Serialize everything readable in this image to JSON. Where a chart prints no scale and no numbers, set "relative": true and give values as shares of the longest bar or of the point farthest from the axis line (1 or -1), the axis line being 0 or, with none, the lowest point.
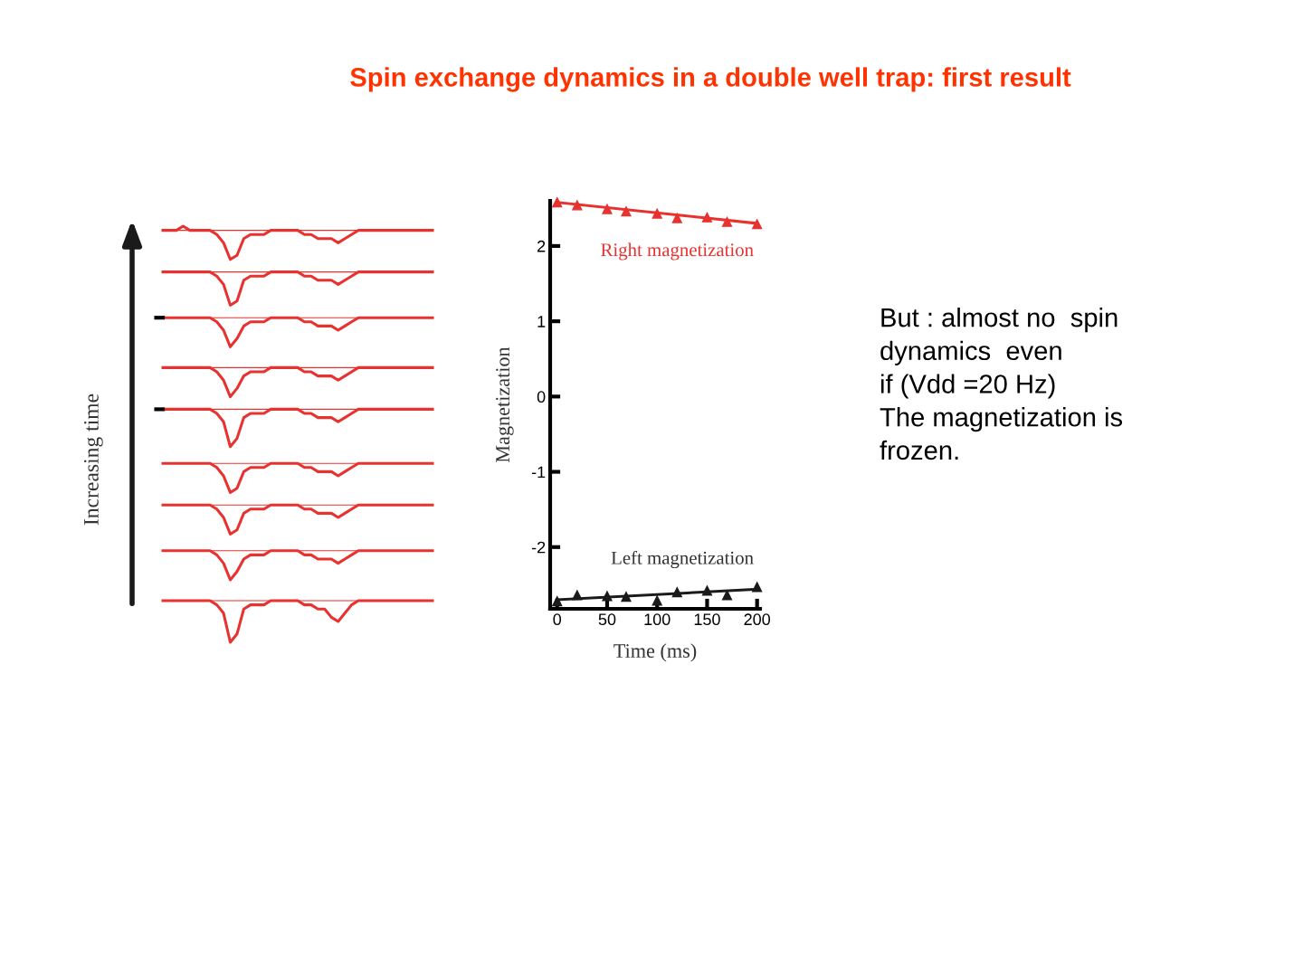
{
  "chart_data": [
    {
      "type": "line",
      "relative": true,
      "title": "Spin exchange dynamics in a double well trap: first result",
      "ylabel": "Increasing time",
      "categories": [
        null,
        null,
        null,
        null,
        null,
        null,
        null,
        null,
        null,
        null,
        null,
        null,
        null,
        null,
        null,
        null,
        null,
        null,
        null,
        null,
        null,
        null,
        null,
        null,
        null,
        null,
        null,
        null,
        null,
        null,
        null,
        null,
        null,
        null,
        null,
        null,
        null,
        null,
        null,
        null,
        null
      ],
      "marker": "none",
      "ref_lines": [
        {
          "axis": "y",
          "value": 0.99,
          "color": "#e8322f"
        },
        {
          "axis": "y",
          "value": 0.89,
          "color": "#e8322f"
        },
        {
          "axis": "y",
          "value": 0.78,
          "color": "#e8322f"
        },
        {
          "axis": "y",
          "value": 0.66,
          "color": "#e8322f"
        },
        {
          "axis": "y",
          "value": 0.56,
          "color": "#e8322f"
        },
        {
          "axis": "y",
          "value": 0.43,
          "color": "#e8322f"
        },
        {
          "axis": "y",
          "value": 0.33,
          "color": "#e8322f"
        },
        {
          "axis": "y",
          "value": 0.22,
          "color": "#e8322f"
        },
        {
          "axis": "y",
          "value": 0.1,
          "color": "#e8322f"
        }
      ],
      "series": [
        {
          "color": "#e8322f",
          "values": [
            0.99,
            0.99,
            0.99,
            1.0,
            0.99,
            0.99,
            0.99,
            0.99,
            0.98,
            0.96,
            0.92,
            0.93,
            0.97,
            0.98,
            0.98,
            0.98,
            0.99,
            0.99,
            0.99,
            0.99,
            0.99,
            0.98,
            0.98,
            0.97,
            0.97,
            0.97,
            0.96,
            0.97,
            0.98,
            0.99,
            0.99,
            0.99,
            0.99,
            0.99,
            0.99,
            0.99,
            0.99,
            0.99,
            0.99,
            0.99,
            0.99
          ]
        },
        {
          "color": "#e8322f",
          "values": [
            0.89,
            0.89,
            0.89,
            0.89,
            0.89,
            0.89,
            0.89,
            0.89,
            0.88,
            0.86,
            0.81,
            0.82,
            0.87,
            0.88,
            0.88,
            0.88,
            0.89,
            0.89,
            0.89,
            0.89,
            0.89,
            0.88,
            0.88,
            0.87,
            0.87,
            0.87,
            0.86,
            0.87,
            0.88,
            0.89,
            0.89,
            0.89,
            0.89,
            0.89,
            0.89,
            0.89,
            0.89,
            0.89,
            0.89,
            0.89,
            0.89
          ]
        },
        {
          "color": "#e8322f",
          "values": [
            0.78,
            0.78,
            0.78,
            0.78,
            0.78,
            0.78,
            0.78,
            0.78,
            0.77,
            0.75,
            0.71,
            0.73,
            0.76,
            0.77,
            0.77,
            0.77,
            0.78,
            0.78,
            0.78,
            0.78,
            0.78,
            0.77,
            0.77,
            0.76,
            0.76,
            0.76,
            0.75,
            0.76,
            0.77,
            0.78,
            0.78,
            0.78,
            0.78,
            0.78,
            0.78,
            0.78,
            0.78,
            0.78,
            0.78,
            0.78,
            0.78
          ]
        },
        {
          "color": "#e8322f",
          "values": [
            0.66,
            0.66,
            0.66,
            0.66,
            0.66,
            0.66,
            0.66,
            0.66,
            0.65,
            0.63,
            0.59,
            0.61,
            0.64,
            0.65,
            0.65,
            0.65,
            0.66,
            0.66,
            0.66,
            0.66,
            0.66,
            0.65,
            0.65,
            0.64,
            0.64,
            0.64,
            0.63,
            0.64,
            0.65,
            0.66,
            0.66,
            0.66,
            0.66,
            0.66,
            0.66,
            0.66,
            0.66,
            0.66,
            0.66,
            0.66,
            0.66
          ]
        },
        {
          "color": "#e8322f",
          "values": [
            0.56,
            0.56,
            0.56,
            0.56,
            0.56,
            0.56,
            0.56,
            0.56,
            0.55,
            0.53,
            0.47,
            0.49,
            0.54,
            0.55,
            0.55,
            0.55,
            0.56,
            0.56,
            0.56,
            0.56,
            0.56,
            0.55,
            0.55,
            0.54,
            0.54,
            0.54,
            0.53,
            0.54,
            0.55,
            0.56,
            0.56,
            0.56,
            0.56,
            0.56,
            0.56,
            0.56,
            0.56,
            0.56,
            0.56,
            0.56,
            0.56
          ]
        },
        {
          "color": "#e8322f",
          "values": [
            0.43,
            0.43,
            0.43,
            0.43,
            0.43,
            0.43,
            0.43,
            0.43,
            0.42,
            0.4,
            0.36,
            0.37,
            0.41,
            0.42,
            0.42,
            0.42,
            0.43,
            0.43,
            0.43,
            0.43,
            0.43,
            0.42,
            0.42,
            0.41,
            0.41,
            0.41,
            0.4,
            0.41,
            0.42,
            0.43,
            0.43,
            0.43,
            0.43,
            0.43,
            0.43,
            0.43,
            0.43,
            0.43,
            0.43,
            0.43,
            0.43
          ]
        },
        {
          "color": "#e8322f",
          "values": [
            0.33,
            0.33,
            0.33,
            0.33,
            0.33,
            0.33,
            0.33,
            0.33,
            0.32,
            0.3,
            0.26,
            0.27,
            0.31,
            0.32,
            0.32,
            0.32,
            0.33,
            0.33,
            0.33,
            0.33,
            0.33,
            0.32,
            0.32,
            0.31,
            0.31,
            0.31,
            0.3,
            0.31,
            0.32,
            0.33,
            0.33,
            0.33,
            0.33,
            0.33,
            0.33,
            0.33,
            0.33,
            0.33,
            0.33,
            0.33,
            0.33
          ]
        },
        {
          "color": "#e8322f",
          "values": [
            0.22,
            0.22,
            0.22,
            0.22,
            0.22,
            0.22,
            0.22,
            0.22,
            0.21,
            0.19,
            0.15,
            0.17,
            0.2,
            0.21,
            0.21,
            0.21,
            0.22,
            0.22,
            0.22,
            0.22,
            0.22,
            0.21,
            0.21,
            0.2,
            0.2,
            0.2,
            0.19,
            0.2,
            0.21,
            0.22,
            0.22,
            0.22,
            0.22,
            0.22,
            0.22,
            0.22,
            0.22,
            0.22,
            0.22,
            0.22,
            0.22
          ]
        },
        {
          "color": "#e8322f",
          "values": [
            0.1,
            0.1,
            0.1,
            0.1,
            0.1,
            0.1,
            0.1,
            0.1,
            0.09,
            0.07,
            0.0,
            0.02,
            0.08,
            0.09,
            0.09,
            0.09,
            0.1,
            0.1,
            0.1,
            0.1,
            0.1,
            0.09,
            0.09,
            0.08,
            0.08,
            0.06,
            0.05,
            0.07,
            0.09,
            0.1,
            0.1,
            0.1,
            0.1,
            0.1,
            0.1,
            0.1,
            0.1,
            0.1,
            0.1,
            0.1,
            0.1
          ]
        }
      ]
    },
    {
      "type": "scatter",
      "xlabel": "Time (ms)",
      "ylabel": "Magnetization",
      "xlim": [
        -7,
        203
      ],
      "ylim": [
        -2.82,
        2.6
      ],
      "xticks": [
        0,
        50,
        100,
        150,
        200
      ],
      "yticks": [
        -2,
        -1,
        0,
        1,
        2
      ],
      "grid": false,
      "marker": "triangle",
      "series": [
        {
          "name": "Right magnetization",
          "color": "#e8322f",
          "x": [
            0,
            20,
            50,
            69,
            100,
            120,
            150,
            170,
            200
          ],
          "values": [
            2.58,
            2.54,
            2.49,
            2.46,
            2.43,
            2.37,
            2.38,
            2.32,
            2.29
          ]
        },
        {
          "type": "line",
          "marker": "none",
          "color": "#e8322f",
          "x": [
            0,
            200
          ],
          "values": [
            2.58,
            2.3
          ]
        },
        {
          "name": "Left magnetization",
          "color": "#1a1a1a",
          "x": [
            0,
            20,
            50,
            69,
            100,
            120,
            150,
            170,
            200
          ],
          "values": [
            -2.72,
            -2.64,
            -2.65,
            -2.66,
            -2.71,
            -2.6,
            -2.58,
            -2.64,
            -2.53
          ]
        },
        {
          "type": "line",
          "marker": "none",
          "color": "#1a1a1a",
          "x": [
            0,
            200
          ],
          "values": [
            -2.7,
            -2.56
          ]
        }
      ],
      "annotations": [
        "But : almost no  spin\ndynamics  even\nif (Vdd =20 Hz)\nThe magnetization is\nfrozen."
      ]
    }
  ]
}
